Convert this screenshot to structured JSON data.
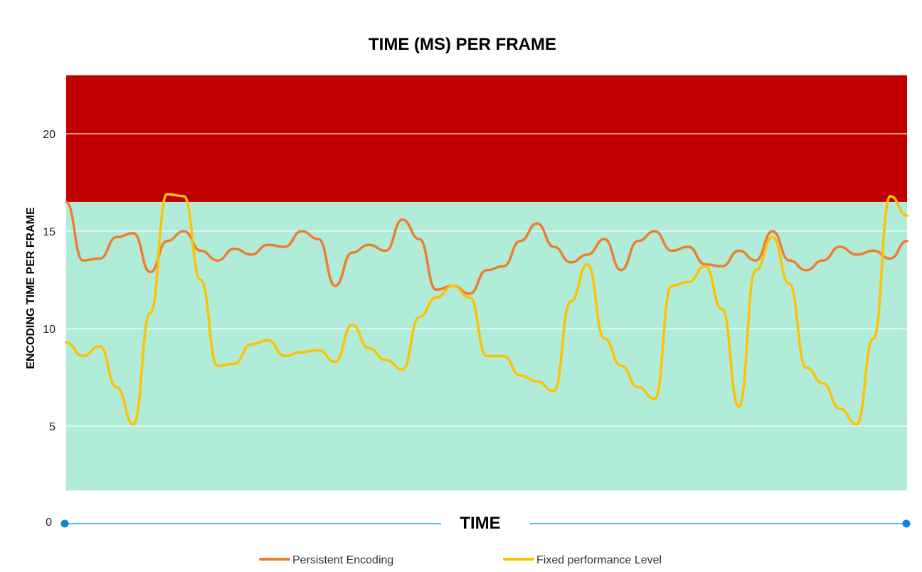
{
  "chart_data": {
    "type": "line",
    "title": "TIME (MS) PER FRAME",
    "xlabel": "TIME",
    "ylabel": "ENCODING TIME PER FRAME",
    "ylim": [
      0,
      23
    ],
    "yticks": [
      "0",
      "5",
      "10",
      "15",
      "20"
    ],
    "grid": true,
    "legend": "bottom",
    "zones": [
      {
        "from": 1.7,
        "to": 16.5,
        "color": "#b0ecd8"
      },
      {
        "from": 16.5,
        "to": 23,
        "color": "#c00000"
      }
    ],
    "x": [
      0,
      2,
      4,
      6,
      8,
      10,
      12,
      14,
      16,
      18,
      20,
      22,
      24,
      26,
      28,
      30,
      32,
      34,
      36,
      38,
      40,
      42,
      44,
      46,
      48,
      50,
      52,
      54,
      56,
      58,
      60,
      62,
      64,
      66,
      68,
      70,
      72,
      74,
      76,
      78,
      80,
      82,
      84,
      86,
      88,
      90,
      92,
      94,
      96,
      98,
      100
    ],
    "series": [
      {
        "name": "Persistent Encoding",
        "color": "#ed7d31",
        "values": [
          16.5,
          13.5,
          13.6,
          14.7,
          14.9,
          12.9,
          14.5,
          15.0,
          14.0,
          13.5,
          14.1,
          13.8,
          14.3,
          14.2,
          15.0,
          14.6,
          12.2,
          13.9,
          14.3,
          14.0,
          15.6,
          14.6,
          12.0,
          12.2,
          11.8,
          13.0,
          13.2,
          14.5,
          15.4,
          14.2,
          13.4,
          13.8,
          14.6,
          13.0,
          14.5,
          15.0,
          14.0,
          14.2,
          13.3,
          13.2,
          14.0,
          13.5,
          15.0,
          13.5,
          13.0,
          13.5,
          14.2,
          13.8,
          14.0,
          13.6,
          14.5
        ]
      },
      {
        "name": "Fixed performance Level",
        "color": "#ffc000",
        "values": [
          9.3,
          8.6,
          9.1,
          7.0,
          5.1,
          10.8,
          16.9,
          16.8,
          12.5,
          8.1,
          8.2,
          9.2,
          9.4,
          8.6,
          8.8,
          8.9,
          8.3,
          10.2,
          9.0,
          8.4,
          7.9,
          10.6,
          11.6,
          12.2,
          11.6,
          8.6,
          8.6,
          7.6,
          7.3,
          6.8,
          11.4,
          13.3,
          9.5,
          8.1,
          7.0,
          6.4,
          12.2,
          12.4,
          13.2,
          11.0,
          6.0,
          13.0,
          14.7,
          12.3,
          8.0,
          7.2,
          5.9,
          5.1,
          9.5,
          16.8,
          15.8
        ]
      }
    ]
  },
  "timeline": {
    "axis_zero_label": "0"
  }
}
